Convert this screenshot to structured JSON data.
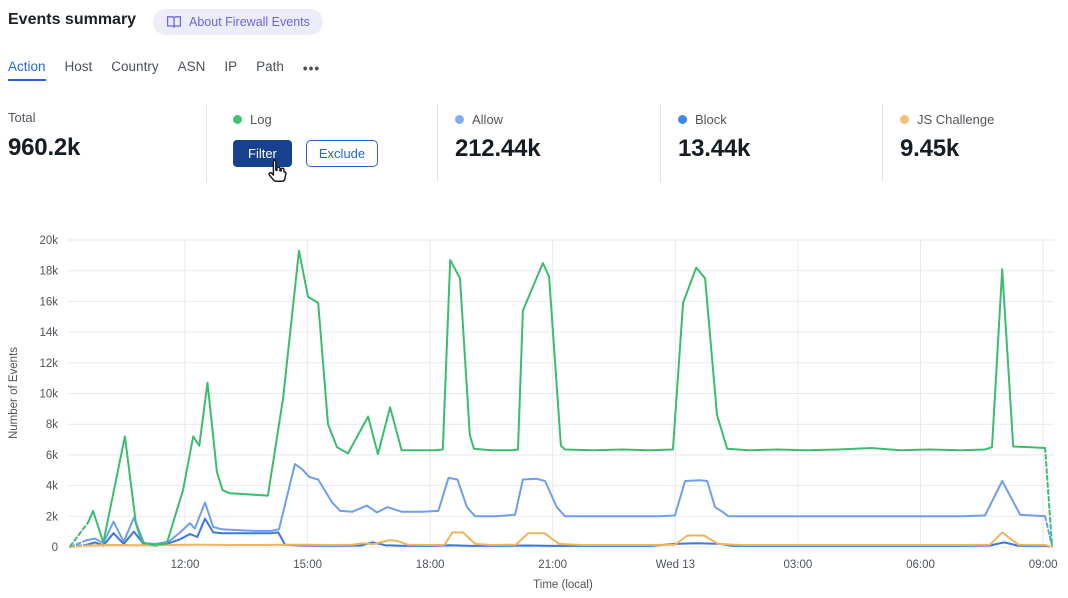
{
  "header": {
    "title": "Events summary",
    "about_badge_label": "About Firewall Events"
  },
  "tabs": {
    "items": [
      {
        "label": "Action",
        "active": true
      },
      {
        "label": "Host",
        "active": false
      },
      {
        "label": "Country",
        "active": false
      },
      {
        "label": "ASN",
        "active": false
      },
      {
        "label": "IP",
        "active": false
      },
      {
        "label": "Path",
        "active": false
      }
    ],
    "more_label": "•••"
  },
  "stats": {
    "total": {
      "label": "Total",
      "value": "960.2k"
    },
    "log": {
      "label": "Log",
      "dot_color": "#3ec46f",
      "filter_label": "Filter",
      "exclude_label": "Exclude"
    },
    "cards": [
      {
        "label": "Allow",
        "value": "212.44k",
        "dot_color": "#7fb0f4"
      },
      {
        "label": "Block",
        "value": "13.44k",
        "dot_color": "#3f87e8"
      },
      {
        "label": "JS Challenge",
        "value": "9.45k",
        "dot_color": "#f3c171"
      }
    ]
  },
  "chart_data": {
    "type": "line",
    "xlabel": "Time (local)",
    "ylabel": "Number of Events",
    "ylim_k": [
      0,
      20
    ],
    "grid": true,
    "y_ticks": [
      {
        "label": "0",
        "v": 0
      },
      {
        "label": "2k",
        "v": 2
      },
      {
        "label": "4k",
        "v": 4
      },
      {
        "label": "6k",
        "v": 6
      },
      {
        "label": "8k",
        "v": 8
      },
      {
        "label": "10k",
        "v": 10
      },
      {
        "label": "12k",
        "v": 12
      },
      {
        "label": "14k",
        "v": 14
      },
      {
        "label": "16k",
        "v": 16
      },
      {
        "label": "18k",
        "v": 18
      },
      {
        "label": "20k",
        "v": 20
      }
    ],
    "x_ticks": [
      {
        "label": "12:00",
        "t": 12
      },
      {
        "label": "15:00",
        "t": 15
      },
      {
        "label": "18:00",
        "t": 18
      },
      {
        "label": "21:00",
        "t": 21
      },
      {
        "label": "Wed 13",
        "t": 24
      },
      {
        "label": "03:00",
        "t": 27
      },
      {
        "label": "06:00",
        "t": 30
      },
      {
        "label": "09:00",
        "t": 33
      }
    ],
    "units_note": "t = hours since Tue 00:00 local (24+ = Wed); v = thousands of events",
    "series": [
      {
        "name": "Allow",
        "color": "#6f9fec",
        "pre_dashed": [
          [
            9.19,
            0
          ],
          [
            9.6,
            0.45
          ]
        ],
        "points": [
          [
            9.6,
            0.45
          ],
          [
            9.8,
            0.55
          ],
          [
            10.0,
            0.25
          ],
          [
            10.25,
            1.65
          ],
          [
            10.5,
            0.35
          ],
          [
            10.75,
            1.9
          ],
          [
            11.0,
            0.25
          ],
          [
            11.3,
            0.2
          ],
          [
            11.6,
            0.35
          ],
          [
            11.88,
            0.95
          ],
          [
            12.12,
            1.55
          ],
          [
            12.24,
            1.2
          ],
          [
            12.49,
            2.9
          ],
          [
            12.69,
            1.3
          ],
          [
            12.9,
            1.15
          ],
          [
            13.3,
            1.1
          ],
          [
            13.7,
            1.05
          ],
          [
            14.1,
            1.05
          ],
          [
            14.3,
            1.15
          ],
          [
            14.69,
            5.4
          ],
          [
            14.85,
            5.1
          ],
          [
            15.05,
            4.55
          ],
          [
            15.26,
            4.4
          ],
          [
            15.6,
            2.9
          ],
          [
            15.8,
            2.35
          ],
          [
            16.1,
            2.3
          ],
          [
            16.45,
            2.7
          ],
          [
            16.7,
            2.25
          ],
          [
            16.95,
            2.6
          ],
          [
            17.3,
            2.3
          ],
          [
            17.8,
            2.3
          ],
          [
            18.2,
            2.35
          ],
          [
            18.45,
            4.5
          ],
          [
            18.67,
            4.4
          ],
          [
            18.9,
            2.6
          ],
          [
            19.1,
            2.0
          ],
          [
            19.6,
            2.0
          ],
          [
            20.08,
            2.1
          ],
          [
            20.27,
            4.4
          ],
          [
            20.6,
            4.45
          ],
          [
            20.81,
            4.3
          ],
          [
            21.1,
            2.6
          ],
          [
            21.3,
            2.0
          ],
          [
            22.0,
            2.0
          ],
          [
            22.8,
            2.0
          ],
          [
            23.6,
            2.0
          ],
          [
            23.99,
            2.05
          ],
          [
            24.24,
            4.3
          ],
          [
            24.6,
            4.35
          ],
          [
            24.78,
            4.3
          ],
          [
            24.97,
            2.6
          ],
          [
            25.15,
            2.3
          ],
          [
            25.3,
            2.0
          ],
          [
            26.0,
            2.0
          ],
          [
            27.0,
            2.0
          ],
          [
            28.0,
            2.0
          ],
          [
            29.0,
            2.0
          ],
          [
            30.0,
            2.0
          ],
          [
            31.0,
            2.0
          ],
          [
            31.58,
            2.05
          ],
          [
            32.0,
            4.3
          ],
          [
            32.44,
            2.1
          ],
          [
            33.05,
            2.0
          ]
        ],
        "post_dashed": [
          [
            33.05,
            2.0
          ],
          [
            33.22,
            0.05
          ]
        ]
      },
      {
        "name": "Block",
        "color": "#3a78df",
        "pre_dashed": [
          [
            9.19,
            0
          ],
          [
            9.6,
            0.15
          ]
        ],
        "points": [
          [
            9.6,
            0.15
          ],
          [
            9.8,
            0.3
          ],
          [
            10.0,
            0.1
          ],
          [
            10.25,
            0.9
          ],
          [
            10.5,
            0.2
          ],
          [
            10.75,
            1.0
          ],
          [
            11.0,
            0.15
          ],
          [
            11.3,
            0.1
          ],
          [
            11.6,
            0.25
          ],
          [
            11.88,
            0.5
          ],
          [
            12.12,
            0.85
          ],
          [
            12.3,
            0.65
          ],
          [
            12.49,
            1.85
          ],
          [
            12.69,
            0.95
          ],
          [
            12.9,
            0.9
          ],
          [
            13.3,
            0.9
          ],
          [
            13.7,
            0.9
          ],
          [
            14.1,
            0.9
          ],
          [
            14.28,
            0.95
          ],
          [
            14.45,
            0.15
          ],
          [
            14.8,
            0.1
          ],
          [
            15.3,
            0.08
          ],
          [
            15.8,
            0.08
          ],
          [
            16.3,
            0.1
          ],
          [
            16.6,
            0.3
          ],
          [
            16.9,
            0.12
          ],
          [
            17.4,
            0.07
          ],
          [
            18.0,
            0.07
          ],
          [
            18.5,
            0.12
          ],
          [
            19.0,
            0.07
          ],
          [
            19.7,
            0.07
          ],
          [
            20.4,
            0.1
          ],
          [
            21.0,
            0.07
          ],
          [
            21.8,
            0.07
          ],
          [
            22.6,
            0.07
          ],
          [
            23.4,
            0.07
          ],
          [
            24.0,
            0.2
          ],
          [
            24.5,
            0.25
          ],
          [
            25.1,
            0.2
          ],
          [
            25.4,
            0.07
          ],
          [
            26.2,
            0.07
          ],
          [
            27.0,
            0.07
          ],
          [
            28.0,
            0.07
          ],
          [
            29.0,
            0.07
          ],
          [
            30.0,
            0.07
          ],
          [
            31.0,
            0.07
          ],
          [
            31.7,
            0.1
          ],
          [
            32.05,
            0.3
          ],
          [
            32.4,
            0.08
          ],
          [
            33.05,
            0.07
          ]
        ],
        "post_dashed": [
          [
            33.05,
            0.07
          ],
          [
            33.22,
            0
          ]
        ]
      },
      {
        "name": "JS Challenge",
        "color": "#eeb45f",
        "pre_dashed": [
          [
            9.19,
            0
          ],
          [
            9.6,
            0.1
          ]
        ],
        "points": [
          [
            9.6,
            0.1
          ],
          [
            10.2,
            0.13
          ],
          [
            10.8,
            0.12
          ],
          [
            11.4,
            0.13
          ],
          [
            12.0,
            0.15
          ],
          [
            12.6,
            0.15
          ],
          [
            13.2,
            0.13
          ],
          [
            13.8,
            0.13
          ],
          [
            14.4,
            0.15
          ],
          [
            15.0,
            0.15
          ],
          [
            15.6,
            0.13
          ],
          [
            16.1,
            0.15
          ],
          [
            16.35,
            0.25
          ],
          [
            16.6,
            0.18
          ],
          [
            17.0,
            0.45
          ],
          [
            17.2,
            0.4
          ],
          [
            17.45,
            0.15
          ],
          [
            18.0,
            0.13
          ],
          [
            18.35,
            0.15
          ],
          [
            18.55,
            0.95
          ],
          [
            18.8,
            0.95
          ],
          [
            19.1,
            0.2
          ],
          [
            19.5,
            0.13
          ],
          [
            20.1,
            0.15
          ],
          [
            20.4,
            0.9
          ],
          [
            20.8,
            0.9
          ],
          [
            21.15,
            0.2
          ],
          [
            21.7,
            0.13
          ],
          [
            22.5,
            0.13
          ],
          [
            23.3,
            0.13
          ],
          [
            23.99,
            0.15
          ],
          [
            24.3,
            0.75
          ],
          [
            24.7,
            0.75
          ],
          [
            25.05,
            0.2
          ],
          [
            25.6,
            0.13
          ],
          [
            26.4,
            0.13
          ],
          [
            27.2,
            0.13
          ],
          [
            28.0,
            0.13
          ],
          [
            29.0,
            0.13
          ],
          [
            30.0,
            0.13
          ],
          [
            31.0,
            0.13
          ],
          [
            31.7,
            0.15
          ],
          [
            32.0,
            0.95
          ],
          [
            32.4,
            0.15
          ],
          [
            33.05,
            0.13
          ]
        ],
        "post_dashed": [
          [
            33.05,
            0.13
          ],
          [
            33.22,
            0
          ]
        ]
      },
      {
        "name": "Log",
        "color": "#3cbd6e",
        "pre_dashed": [
          [
            9.19,
            0.05
          ],
          [
            9.63,
            1.6
          ]
        ],
        "points": [
          [
            9.63,
            1.6
          ],
          [
            9.75,
            2.35
          ],
          [
            10.0,
            0.3
          ],
          [
            10.53,
            7.2
          ],
          [
            10.8,
            1.5
          ],
          [
            10.95,
            0.3
          ],
          [
            11.2,
            0.15
          ],
          [
            11.55,
            0.2
          ],
          [
            11.95,
            3.7
          ],
          [
            12.2,
            7.2
          ],
          [
            12.35,
            6.6
          ],
          [
            12.55,
            10.7
          ],
          [
            12.78,
            4.9
          ],
          [
            12.92,
            3.7
          ],
          [
            13.1,
            3.5
          ],
          [
            13.4,
            3.45
          ],
          [
            13.7,
            3.4
          ],
          [
            14.03,
            3.35
          ],
          [
            14.4,
            9.7
          ],
          [
            14.79,
            19.3
          ],
          [
            15.01,
            16.3
          ],
          [
            15.26,
            15.9
          ],
          [
            15.5,
            8.0
          ],
          [
            15.72,
            6.5
          ],
          [
            15.99,
            6.1
          ],
          [
            16.48,
            8.5
          ],
          [
            16.72,
            6.05
          ],
          [
            17.02,
            9.1
          ],
          [
            17.3,
            6.3
          ],
          [
            17.7,
            6.3
          ],
          [
            18.1,
            6.3
          ],
          [
            18.31,
            6.35
          ],
          [
            18.49,
            18.7
          ],
          [
            18.73,
            17.5
          ],
          [
            18.97,
            7.3
          ],
          [
            19.07,
            6.4
          ],
          [
            19.5,
            6.3
          ],
          [
            20.0,
            6.3
          ],
          [
            20.15,
            6.35
          ],
          [
            20.27,
            15.4
          ],
          [
            20.76,
            18.5
          ],
          [
            20.91,
            17.6
          ],
          [
            21.2,
            6.6
          ],
          [
            21.3,
            6.35
          ],
          [
            22.0,
            6.3
          ],
          [
            22.7,
            6.35
          ],
          [
            23.4,
            6.3
          ],
          [
            23.94,
            6.35
          ],
          [
            24.19,
            15.9
          ],
          [
            24.51,
            18.2
          ],
          [
            24.73,
            17.5
          ],
          [
            25.02,
            8.6
          ],
          [
            25.27,
            6.4
          ],
          [
            25.8,
            6.3
          ],
          [
            26.5,
            6.35
          ],
          [
            27.2,
            6.3
          ],
          [
            28.0,
            6.35
          ],
          [
            28.8,
            6.45
          ],
          [
            29.5,
            6.3
          ],
          [
            30.2,
            6.35
          ],
          [
            31.0,
            6.3
          ],
          [
            31.58,
            6.35
          ],
          [
            31.75,
            6.5
          ],
          [
            32.0,
            18.1
          ],
          [
            32.27,
            6.55
          ],
          [
            32.7,
            6.5
          ],
          [
            33.05,
            6.45
          ]
        ],
        "post_dashed": [
          [
            33.05,
            6.45
          ],
          [
            33.22,
            0.1
          ]
        ]
      }
    ]
  }
}
